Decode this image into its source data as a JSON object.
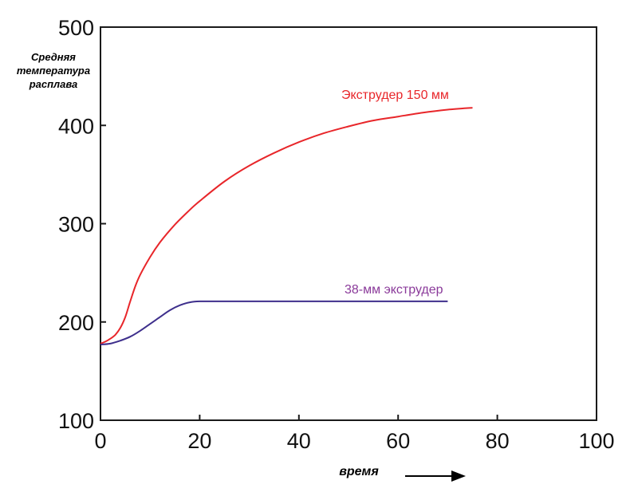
{
  "chart_data": {
    "type": "line",
    "title": "",
    "xlabel": "время",
    "ylabel": [
      "Средняя",
      "температура",
      "расплава"
    ],
    "xlim": [
      0,
      100
    ],
    "ylim": [
      100,
      500
    ],
    "xticks": [
      "0",
      "20",
      "40",
      "60",
      "80",
      "100"
    ],
    "yticks": [
      "100",
      "200",
      "300",
      "400",
      "500"
    ],
    "grid": false,
    "legend": "inline labels",
    "series": [
      {
        "name": "Экструдер 150 мм",
        "color": "#e8262a",
        "x": [
          0,
          1,
          2,
          3,
          4,
          5,
          6,
          7,
          8,
          10,
          12,
          15,
          18,
          20,
          25,
          30,
          35,
          40,
          45,
          50,
          55,
          60,
          65,
          70,
          75
        ],
        "y": [
          178,
          180,
          183,
          187,
          194,
          205,
          221,
          236,
          248,
          266,
          281,
          299,
          314,
          323,
          343,
          359,
          372,
          383,
          392,
          399,
          405,
          409,
          413,
          416,
          418
        ]
      },
      {
        "name": "38-мм экструдер",
        "color": "#3e2f8c",
        "x": [
          0,
          2,
          4,
          6,
          8,
          10,
          12,
          14,
          16,
          18,
          20,
          25,
          30,
          40,
          50,
          60,
          70
        ],
        "y": [
          177,
          178,
          181,
          185,
          191,
          198,
          205,
          212,
          217,
          220,
          221,
          221,
          221,
          221,
          221,
          221,
          221
        ]
      }
    ]
  }
}
